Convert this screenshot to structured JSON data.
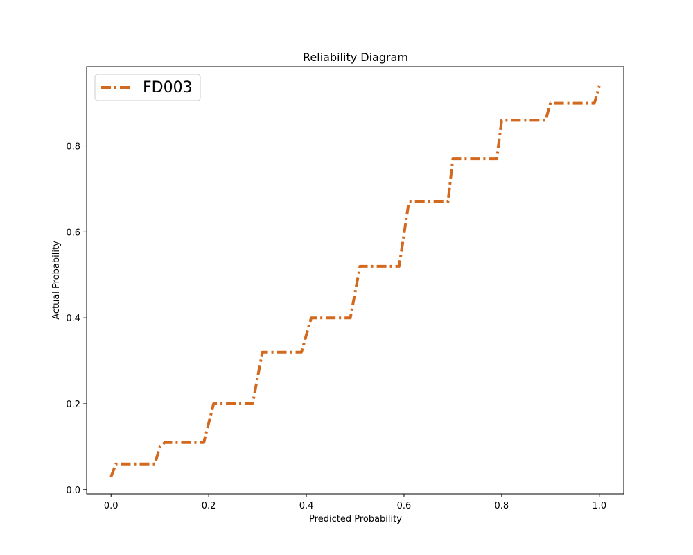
{
  "chart_data": {
    "type": "line",
    "title": "Reliability Diagram",
    "xlabel": "Predicted Probability",
    "ylabel": "Actual Probability",
    "xlim": [
      -0.05,
      1.05
    ],
    "ylim": [
      -0.01,
      0.985
    ],
    "xticks": [
      0.0,
      0.2,
      0.4,
      0.6,
      0.8,
      1.0
    ],
    "yticks": [
      0.0,
      0.2,
      0.4,
      0.6,
      0.8
    ],
    "xtick_labels": [
      "0.0",
      "0.2",
      "0.4",
      "0.6",
      "0.8",
      "1.0"
    ],
    "ytick_labels": [
      "0.0",
      "0.2",
      "0.4",
      "0.6",
      "0.8"
    ],
    "grid": false,
    "legend_position": "top-left",
    "series": [
      {
        "name": "FD003",
        "color": "#d2691e",
        "line_style": "dash-dot",
        "x": [
          0.0,
          0.01,
          0.09,
          0.1,
          0.11,
          0.19,
          0.21,
          0.29,
          0.31,
          0.39,
          0.41,
          0.49,
          0.51,
          0.59,
          0.61,
          0.69,
          0.7,
          0.79,
          0.8,
          0.89,
          0.9,
          0.99,
          1.0
        ],
        "y": [
          0.03,
          0.06,
          0.06,
          0.1,
          0.11,
          0.11,
          0.2,
          0.2,
          0.32,
          0.32,
          0.4,
          0.4,
          0.52,
          0.52,
          0.67,
          0.67,
          0.77,
          0.77,
          0.86,
          0.86,
          0.9,
          0.9,
          0.94
        ]
      }
    ]
  }
}
